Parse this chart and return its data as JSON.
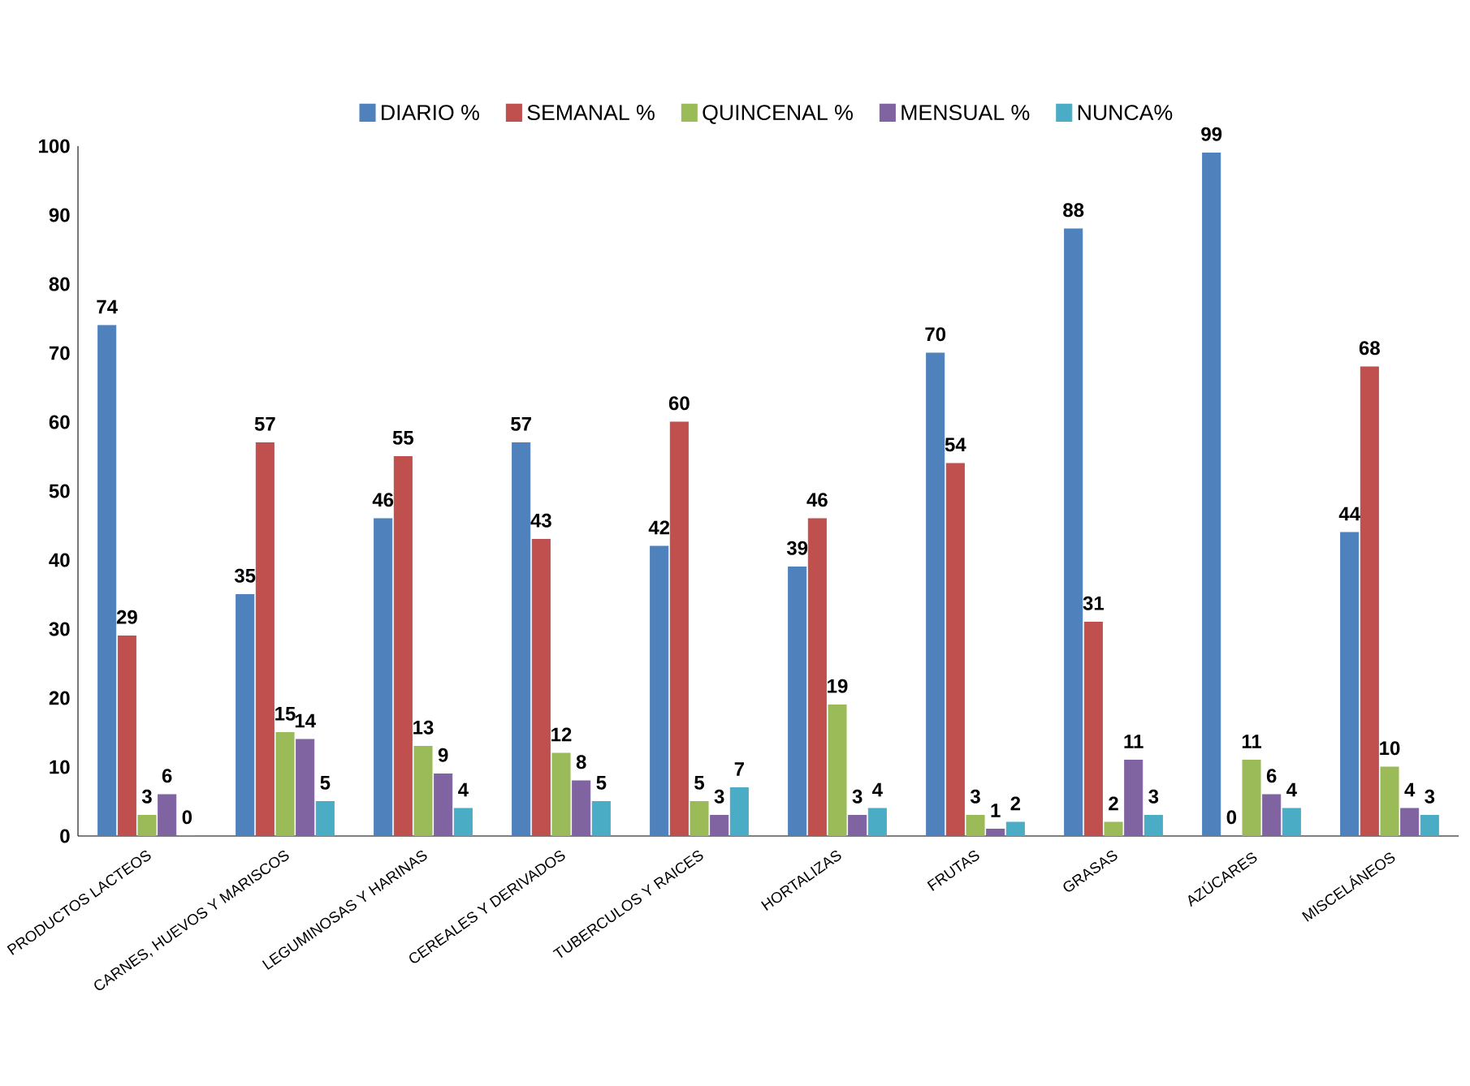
{
  "chart_data": {
    "type": "bar",
    "categories": [
      "PRODUCTOS LACTEOS",
      "CARNES, HUEVOS Y MARISCOS",
      "LEGUMINOSAS Y HARINAS",
      "CEREALES Y DERIVADOS",
      "TUBERCULOS Y RAICES",
      "HORTALIZAS",
      "FRUTAS",
      "GRASAS",
      "AZÚCARES",
      "MISCELÁNEOS"
    ],
    "series": [
      {
        "name": "DIARIO %",
        "color": "#4f81bd",
        "values": [
          74,
          35,
          46,
          57,
          42,
          39,
          70,
          88,
          99,
          44
        ]
      },
      {
        "name": "SEMANAL %",
        "color": "#c0504d",
        "values": [
          29,
          57,
          55,
          43,
          60,
          46,
          54,
          31,
          0,
          68
        ]
      },
      {
        "name": "QUINCENAL %",
        "color": "#9bbb59",
        "values": [
          3,
          15,
          13,
          12,
          5,
          19,
          3,
          2,
          11,
          10
        ]
      },
      {
        "name": "MENSUAL %",
        "color": "#8064a2",
        "values": [
          6,
          14,
          9,
          8,
          3,
          3,
          1,
          11,
          6,
          4
        ]
      },
      {
        "name": "NUNCA%",
        "color": "#4bacc6",
        "values": [
          0,
          5,
          4,
          5,
          7,
          4,
          2,
          3,
          4,
          3
        ]
      }
    ],
    "ylim": [
      0,
      100
    ],
    "yticks": [
      0,
      10,
      20,
      30,
      40,
      50,
      60,
      70,
      80,
      90,
      100
    ],
    "legend": "top",
    "data_labels": true,
    "grid": false
  }
}
